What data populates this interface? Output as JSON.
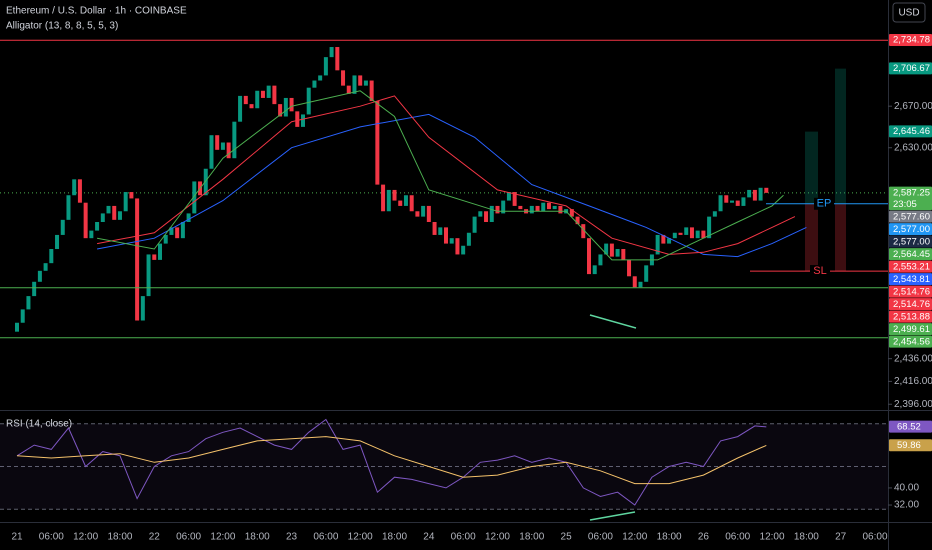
{
  "chart_data": {
    "type": "candlestick",
    "title": "Ethereum / U.S. Dollar · 1h · COINBASE",
    "indicator_label": "Alligator (13, 8, 8, 5, 5, 3)",
    "currency": "USD",
    "log_scale": true,
    "up_color": "#089981",
    "down_color": "#f23645",
    "ylim": [
      2391,
      2775
    ],
    "yticks": [
      {
        "value": 2670,
        "label": "2,670.00"
      },
      {
        "value": 2630,
        "label": "2,630.00"
      },
      {
        "value": 2436,
        "label": "2,436.00"
      },
      {
        "value": 2416,
        "label": "2,416.00"
      },
      {
        "value": 2396,
        "label": "2,396.00"
      }
    ],
    "categories": [
      "21",
      null,
      null,
      null,
      null,
      null,
      "06:00",
      null,
      null,
      null,
      null,
      null,
      "12:00",
      null,
      null,
      null,
      null,
      null,
      "18:00",
      null,
      null,
      null,
      null,
      null,
      "22",
      null,
      null,
      null,
      null,
      null,
      "06:00",
      null,
      null,
      null,
      null,
      null,
      "12:00",
      null,
      null,
      null,
      null,
      null,
      "18:00",
      null,
      null,
      null,
      null,
      null,
      "23",
      null,
      null,
      null,
      null,
      null,
      "06:00",
      null,
      null,
      null,
      null,
      null,
      "12:00",
      null,
      null,
      null,
      null,
      null,
      "18:00",
      null,
      null,
      null,
      null,
      null,
      "24",
      null,
      null,
      null,
      null,
      null,
      "06:00",
      null,
      null,
      null,
      null,
      null,
      "12:00",
      null,
      null,
      null,
      null,
      null,
      "18:00",
      null,
      null,
      null,
      null,
      null,
      "25",
      null,
      null,
      null,
      null,
      null,
      "06:00",
      null,
      null,
      null,
      null,
      null,
      "12:00",
      null,
      null,
      null,
      null,
      null,
      "18:00",
      null,
      null,
      null,
      null,
      null,
      "26",
      null,
      null,
      null,
      null,
      null,
      "06:00",
      null,
      null,
      null,
      null,
      null,
      "12:00",
      null,
      null,
      null,
      null,
      null,
      "18:00",
      null,
      null,
      null,
      null,
      null,
      "27",
      null,
      null,
      null,
      null,
      null,
      "06:00"
    ],
    "open": [
      2460,
      2468,
      2480,
      2492,
      2505,
      2515,
      2522,
      2535,
      2548,
      2562,
      2585,
      2600,
      2578,
      2545,
      2552,
      2560,
      2568,
      2575,
      2562,
      2570,
      2588,
      2582,
      2470,
      2492,
      2530,
      2525,
      2540,
      2548,
      2555,
      2545,
      2560,
      2568,
      2598,
      2585,
      2610,
      2642,
      2628,
      2635,
      2620,
      2655,
      2680,
      2672,
      2668,
      2685,
      2678,
      2690,
      2672,
      2660,
      2678,
      2665,
      2650,
      2662,
      2688,
      2695,
      2700,
      2718,
      2728,
      2705,
      2690,
      2682,
      2700,
      2690,
      2695,
      2675,
      2595,
      2570,
      2590,
      2580,
      2575,
      2585,
      2570,
      2565,
      2575,
      2560,
      2548,
      2555,
      2540,
      2545,
      2530,
      2538,
      2550,
      2565,
      2570,
      2560,
      2575,
      2568,
      2580,
      2588,
      2575,
      2572,
      2568,
      2575,
      2570,
      2578,
      2572,
      2575,
      2568,
      2572,
      2565,
      2558,
      2545,
      2512,
      2520,
      2530,
      2540,
      2528,
      2535,
      2525,
      2510,
      2500,
      2505,
      2520,
      2530,
      2548,
      2540,
      2545,
      2550,
      2548,
      2555,
      2545,
      2552,
      2545,
      2565,
      2570,
      2585,
      2578,
      2580,
      2575,
      2583,
      2590,
      2580,
      2592,
      null,
      null,
      null,
      null,
      null,
      null,
      null,
      null,
      null,
      null,
      null,
      null,
      null,
      null,
      null,
      null,
      null,
      null,
      null
    ],
    "close": [
      2468,
      2480,
      2492,
      2505,
      2515,
      2522,
      2535,
      2548,
      2562,
      2585,
      2600,
      2578,
      2545,
      2552,
      2560,
      2568,
      2575,
      2562,
      2570,
      2588,
      2582,
      2470,
      2492,
      2530,
      2525,
      2540,
      2548,
      2555,
      2545,
      2560,
      2568,
      2598,
      2585,
      2610,
      2642,
      2628,
      2635,
      2620,
      2655,
      2680,
      2672,
      2668,
      2685,
      2678,
      2690,
      2672,
      2660,
      2678,
      2665,
      2650,
      2662,
      2688,
      2695,
      2700,
      2718,
      2728,
      2705,
      2690,
      2682,
      2700,
      2690,
      2695,
      2675,
      2595,
      2570,
      2590,
      2580,
      2575,
      2585,
      2570,
      2565,
      2575,
      2560,
      2548,
      2555,
      2540,
      2545,
      2530,
      2538,
      2550,
      2565,
      2570,
      2560,
      2575,
      2568,
      2580,
      2588,
      2575,
      2572,
      2568,
      2575,
      2570,
      2578,
      2572,
      2575,
      2568,
      2572,
      2565,
      2558,
      2545,
      2512,
      2520,
      2530,
      2540,
      2528,
      2535,
      2525,
      2510,
      2500,
      2505,
      2520,
      2530,
      2548,
      2540,
      2545,
      2550,
      2548,
      2555,
      2545,
      2552,
      2545,
      2565,
      2570,
      2585,
      2578,
      2580,
      2575,
      2583,
      2590,
      2580,
      2592,
      2587.25,
      null,
      null,
      null,
      null,
      null,
      null,
      null,
      null,
      null,
      null,
      null,
      null,
      null,
      null,
      null,
      null,
      null,
      null,
      null
    ],
    "alligator": [
      {
        "color": "#2962ff",
        "x": [
          14,
          24,
          36,
          48,
          60,
          72,
          80,
          90,
          100,
          110,
          120,
          126,
          132,
          138
        ],
        "values": [
          2535,
          2545,
          2580,
          2630,
          2650,
          2662,
          2640,
          2595,
          2575,
          2555,
          2530,
          2528,
          2540,
          2555
        ]
      },
      {
        "color": "#f23645",
        "x": [
          14,
          24,
          36,
          48,
          60,
          66,
          72,
          84,
          96,
          104,
          114,
          120,
          126,
          132,
          136
        ],
        "values": [
          2540,
          2550,
          2600,
          2655,
          2670,
          2680,
          2640,
          2590,
          2575,
          2545,
          2530,
          2532,
          2540,
          2555,
          2565
        ]
      },
      {
        "color": "#4caf50",
        "x": [
          14,
          24,
          36,
          48,
          60,
          66,
          72,
          84,
          96,
          104,
          112,
          120,
          126,
          132,
          134
        ],
        "values": [
          2545,
          2535,
          2620,
          2670,
          2685,
          2660,
          2590,
          2570,
          2570,
          2525,
          2525,
          2545,
          2560,
          2575,
          2585
        ]
      }
    ],
    "price_badges": [
      {
        "value": 2734.78,
        "label": "2,734.78",
        "color": "#f23645"
      },
      {
        "value": 2706.67,
        "label": "2,706.67",
        "color": "#089981"
      },
      {
        "value": 2645.46,
        "label": "2,645.46",
        "color": "#089981"
      },
      {
        "value": 2587.25,
        "label": "2,587.25",
        "color": "#4caf50",
        "sub": "23:05"
      },
      {
        "value": 2577.6,
        "label": "2,577.60",
        "color": "#787b86"
      },
      {
        "value": 2577.0,
        "label": "2,577.00",
        "color": "#2196f3"
      },
      {
        "value": 2577.0,
        "label": "2,577.00",
        "color": "#1c2a44"
      },
      {
        "value": 2564.45,
        "label": "2,564.45",
        "color": "#4caf50"
      },
      {
        "value": 2553.21,
        "label": "2,553.21",
        "color": "#f23645"
      },
      {
        "value": 2543.81,
        "label": "2,543.81",
        "color": "#2962ff"
      },
      {
        "value": 2514.76,
        "label": "2,514.76",
        "color": "#f23645"
      },
      {
        "value": 2514.76,
        "label": "2,514.76",
        "color": "#f23645"
      },
      {
        "value": 2513.88,
        "label": "2,513.88",
        "color": "#f23645"
      },
      {
        "value": 2499.61,
        "label": "2,499.61",
        "color": "#4caf50"
      },
      {
        "value": 2454.56,
        "label": "2,454.56",
        "color": "#4caf50"
      }
    ],
    "entry_label": "EP",
    "stop_label": "SL",
    "rsi": {
      "title": "RSI (14, close)",
      "ylim": [
        25,
        75.5
      ],
      "yticks": [
        {
          "value": 40,
          "label": "40.00"
        },
        {
          "value": 32,
          "label": "32.00"
        }
      ],
      "levels": [
        70,
        50,
        30
      ],
      "line": {
        "color": "#7e57c2",
        "x": [
          0,
          3,
          6,
          9,
          12,
          15,
          18,
          21,
          24,
          27,
          30,
          33,
          36,
          39,
          42,
          45,
          48,
          51,
          54,
          57,
          60,
          63,
          66,
          69,
          72,
          75,
          78,
          81,
          84,
          87,
          90,
          93,
          96,
          99,
          102,
          105,
          108,
          111,
          114,
          117,
          120,
          123,
          126,
          129,
          131
        ],
        "values": [
          55,
          60,
          58,
          68,
          50,
          57,
          55,
          35,
          50,
          55,
          57,
          63,
          66,
          68,
          64,
          60,
          58,
          66,
          72,
          58,
          60,
          38,
          45,
          44,
          42,
          40,
          45,
          52,
          53,
          55,
          52,
          54,
          52,
          40,
          36,
          38,
          32,
          45,
          50,
          52,
          50,
          62,
          64,
          69,
          68.52
        ]
      },
      "ma": {
        "color": "#f5c26b",
        "x": [
          0,
          6,
          12,
          18,
          24,
          30,
          36,
          42,
          48,
          54,
          60,
          66,
          72,
          78,
          84,
          90,
          96,
          102,
          108,
          114,
          120,
          126,
          131
        ],
        "values": [
          55,
          54,
          55,
          56,
          52,
          54,
          58,
          62,
          63,
          64,
          62,
          55,
          50,
          45,
          46,
          50,
          52,
          48,
          42,
          42,
          46,
          54,
          59.86
        ]
      },
      "badges": [
        {
          "value": 68.52,
          "label": "68.52",
          "color": "#7e57c2"
        },
        {
          "value": 59.86,
          "label": "59.86",
          "color": "#c9a14a"
        }
      ]
    }
  }
}
